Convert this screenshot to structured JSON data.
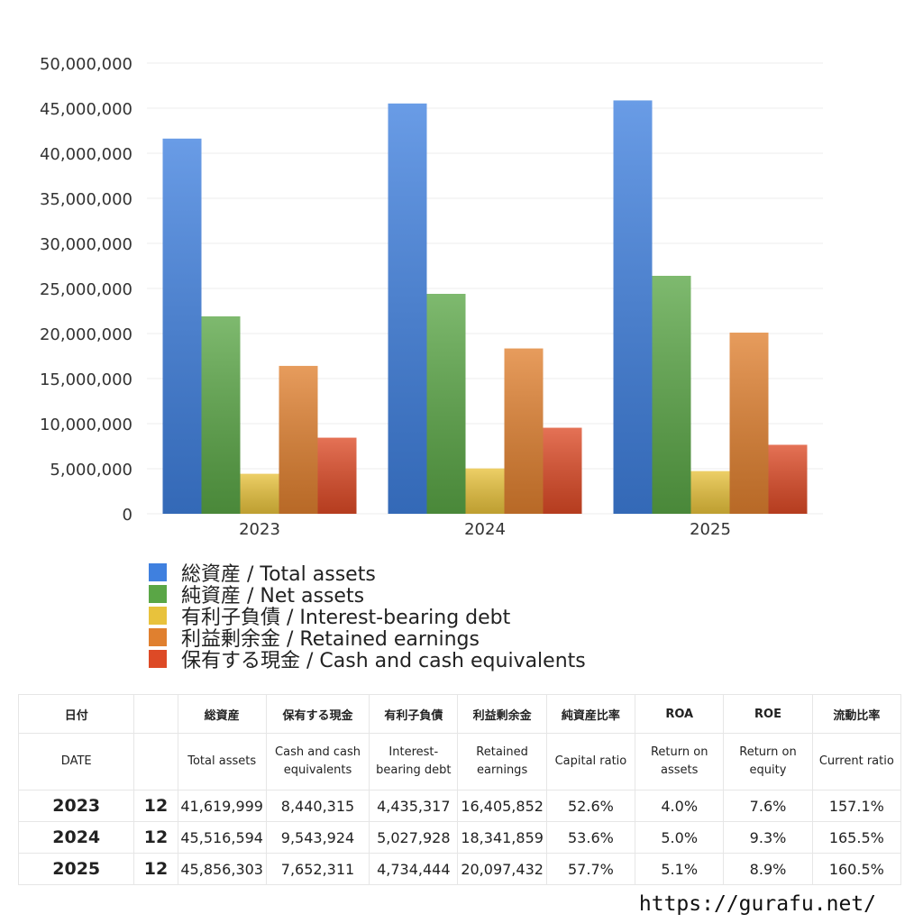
{
  "chart_data": {
    "type": "bar",
    "categories": [
      "2023",
      "2024",
      "2025"
    ],
    "series": [
      {
        "name": "総資産 / Total assets",
        "values": [
          41619999,
          45516594,
          45856303
        ],
        "color": "#3f80df"
      },
      {
        "name": "純資産 / Net assets",
        "values": [
          21900000,
          24400000,
          26400000
        ],
        "color": "#5aa646"
      },
      {
        "name": "有利子負債 / Interest-bearing debt",
        "values": [
          4435317,
          5027928,
          4734444
        ],
        "color": "#e8c23c"
      },
      {
        "name": "利益剰余金 / Retained earnings",
        "values": [
          16405852,
          18341859,
          20097432
        ],
        "color": "#e0802f"
      },
      {
        "name": "保有する現金 /  Cash and cash equivalents",
        "values": [
          8440315,
          9543924,
          7652311
        ],
        "color": "#dd4a26"
      }
    ],
    "yticks": [
      "50,000,000",
      "45,000,000",
      "40,000,000",
      "35,000,000",
      "30,000,000",
      "25,000,000",
      "20,000,000",
      "15,000,000",
      "10,000,000",
      "5,000,000",
      "0"
    ],
    "ylim": [
      0,
      50000000
    ],
    "grid": true,
    "legend_position": "bottom"
  },
  "table": {
    "headers_ja": [
      "日付",
      "",
      "総資産",
      "保有する現金",
      "有利子負債",
      "利益剰余金",
      "純資産比率",
      "ROA",
      "ROE",
      "流動比率"
    ],
    "headers_en": [
      "DATE",
      "",
      "Total assets",
      "Cash and cash equivalents",
      "Interest-bearing debt",
      "Retained earnings",
      "Capital ratio",
      "Return on assets",
      "Return on equity",
      "Current ratio"
    ],
    "rows": [
      [
        "2023",
        "12",
        "41,619,999",
        "8,440,315",
        "4,435,317",
        "16,405,852",
        "52.6%",
        "4.0%",
        "7.6%",
        "157.1%"
      ],
      [
        "2024",
        "12",
        "45,516,594",
        "9,543,924",
        "5,027,928",
        "18,341,859",
        "53.6%",
        "5.0%",
        "9.3%",
        "165.5%"
      ],
      [
        "2025",
        "12",
        "45,856,303",
        "7,652,311",
        "4,734,444",
        "20,097,432",
        "57.7%",
        "5.1%",
        "8.9%",
        "160.5%"
      ]
    ]
  },
  "footer": {
    "site": "https://gurafu.net/"
  }
}
